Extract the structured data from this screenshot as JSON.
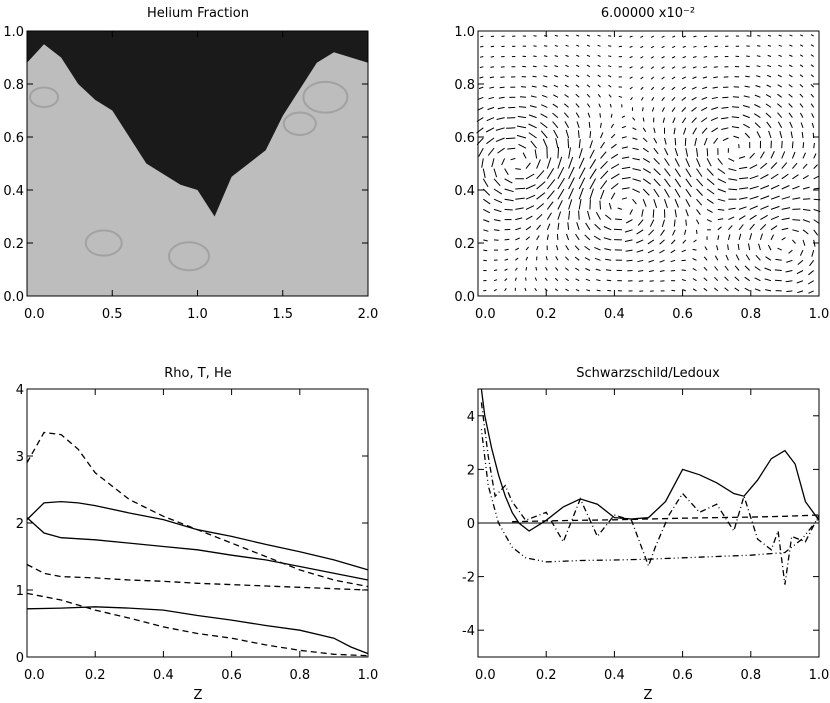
{
  "chart_data": [
    {
      "type": "heatmap",
      "title": "Helium Fraction",
      "xlabel": "",
      "ylabel": "",
      "xlim": [
        0,
        2
      ],
      "ylim": [
        0,
        1
      ],
      "xticks": [
        "0.0",
        "0.5",
        "1.0",
        "1.5",
        "2.0"
      ],
      "yticks": [
        "0.0",
        "0.2",
        "0.4",
        "0.6",
        "0.8",
        "1.0"
      ],
      "colormap": "grayscale",
      "colors": {
        "low": "#1a1a1a",
        "high": "#bdbdbd"
      },
      "dark_region_boundary": {
        "x": [
          0.0,
          0.1,
          0.2,
          0.3,
          0.4,
          0.5,
          0.6,
          0.7,
          0.8,
          0.9,
          1.0,
          1.1,
          1.2,
          1.3,
          1.4,
          1.5,
          1.6,
          1.7,
          1.8,
          1.9,
          2.0
        ],
        "y": [
          0.88,
          0.95,
          0.9,
          0.8,
          0.74,
          0.7,
          0.6,
          0.5,
          0.46,
          0.42,
          0.4,
          0.3,
          0.45,
          0.5,
          0.55,
          0.68,
          0.78,
          0.88,
          0.92,
          0.9,
          0.88
        ]
      }
    },
    {
      "type": "quiver",
      "title": "6.00000 x10⁻²",
      "xlabel": "",
      "ylabel": "",
      "xlim": [
        0,
        1
      ],
      "ylim": [
        0,
        1
      ],
      "xticks": [
        "0.0",
        "0.2",
        "0.4",
        "0.6",
        "0.8",
        "1.0"
      ],
      "yticks": [
        "0.0",
        "0.2",
        "0.4",
        "0.6",
        "0.8",
        "1.0"
      ],
      "vortices": [
        {
          "x": 0.12,
          "y": 0.5,
          "strength": 1.0
        },
        {
          "x": 0.42,
          "y": 0.35,
          "strength": -0.8
        },
        {
          "x": 0.75,
          "y": 0.55,
          "strength": 0.7
        },
        {
          "x": 0.9,
          "y": 0.2,
          "strength": -0.6
        }
      ]
    },
    {
      "type": "line",
      "title": "Rho, T, He",
      "xlabel": "Z",
      "ylabel": "",
      "xlim": [
        0,
        1
      ],
      "ylim": [
        0,
        4
      ],
      "xticks": [
        "0.0",
        "0.2",
        "0.4",
        "0.6",
        "0.8",
        "1.0"
      ],
      "yticks": [
        "0",
        "1",
        "2",
        "3",
        "4"
      ],
      "series": [
        {
          "style": "dashed",
          "x": [
            0.0,
            0.05,
            0.1,
            0.15,
            0.2,
            0.3,
            0.4,
            0.5,
            0.6,
            0.7,
            0.8,
            0.9,
            1.0
          ],
          "y": [
            2.9,
            3.35,
            3.32,
            3.1,
            2.75,
            2.35,
            2.1,
            1.9,
            1.7,
            1.5,
            1.3,
            1.15,
            1.05
          ]
        },
        {
          "style": "solid",
          "x": [
            0.0,
            0.05,
            0.1,
            0.15,
            0.2,
            0.3,
            0.4,
            0.5,
            0.6,
            0.7,
            0.8,
            0.9,
            1.0
          ],
          "y": [
            2.05,
            2.3,
            2.32,
            2.3,
            2.26,
            2.15,
            2.05,
            1.9,
            1.8,
            1.68,
            1.57,
            1.45,
            1.3
          ]
        },
        {
          "style": "solid",
          "x": [
            0.0,
            0.05,
            0.1,
            0.2,
            0.3,
            0.4,
            0.5,
            0.6,
            0.7,
            0.8,
            0.9,
            1.0
          ],
          "y": [
            2.08,
            1.85,
            1.78,
            1.75,
            1.7,
            1.65,
            1.6,
            1.52,
            1.45,
            1.35,
            1.25,
            1.15
          ]
        },
        {
          "style": "dashed",
          "x": [
            0.0,
            0.05,
            0.1,
            0.2,
            0.3,
            0.4,
            0.5,
            0.6,
            0.7,
            0.8,
            0.9,
            1.0
          ],
          "y": [
            1.38,
            1.25,
            1.2,
            1.18,
            1.15,
            1.13,
            1.1,
            1.08,
            1.06,
            1.04,
            1.02,
            1.0
          ]
        },
        {
          "style": "dashed",
          "x": [
            0.0,
            0.1,
            0.2,
            0.3,
            0.4,
            0.5,
            0.6,
            0.7,
            0.8,
            0.9,
            1.0
          ],
          "y": [
            0.95,
            0.85,
            0.7,
            0.58,
            0.45,
            0.35,
            0.28,
            0.18,
            0.1,
            0.04,
            0.02
          ]
        },
        {
          "style": "solid",
          "x": [
            0.0,
            0.1,
            0.2,
            0.3,
            0.4,
            0.5,
            0.6,
            0.7,
            0.8,
            0.9,
            0.95,
            1.0
          ],
          "y": [
            0.72,
            0.73,
            0.75,
            0.73,
            0.7,
            0.62,
            0.55,
            0.47,
            0.4,
            0.28,
            0.15,
            0.05
          ]
        }
      ]
    },
    {
      "type": "line",
      "title": "Schwarzschild/Ledoux",
      "xlabel": "Z",
      "ylabel": "",
      "xlim": [
        0,
        1
      ],
      "ylim": [
        -5,
        5
      ],
      "xticks": [
        "0.0",
        "0.2",
        "0.4",
        "0.6",
        "0.8",
        "1.0"
      ],
      "yticks": [
        "-4",
        "-2",
        "0",
        "2",
        "4"
      ],
      "hline": 0,
      "series": [
        {
          "style": "solid",
          "x": [
            0.01,
            0.02,
            0.04,
            0.06,
            0.08,
            0.1,
            0.12,
            0.15,
            0.2,
            0.25,
            0.3,
            0.35,
            0.4,
            0.45,
            0.5,
            0.55,
            0.6,
            0.65,
            0.7,
            0.75,
            0.78,
            0.82,
            0.86,
            0.9,
            0.93,
            0.96,
            1.0
          ],
          "y": [
            5.0,
            4.0,
            2.8,
            1.8,
            1.0,
            0.4,
            0.0,
            -0.3,
            0.1,
            0.6,
            0.9,
            0.7,
            0.2,
            0.15,
            0.2,
            0.8,
            2.0,
            1.8,
            1.5,
            1.1,
            1.0,
            1.6,
            2.4,
            2.7,
            2.2,
            0.8,
            0.1
          ]
        },
        {
          "style": "dashdot",
          "x": [
            0.01,
            0.03,
            0.05,
            0.08,
            0.1,
            0.14,
            0.2,
            0.25,
            0.3,
            0.35,
            0.4,
            0.45,
            0.5,
            0.52,
            0.56,
            0.6,
            0.65,
            0.7,
            0.75,
            0.78,
            0.82,
            0.86,
            0.88,
            0.9,
            0.92,
            0.96,
            1.0
          ],
          "y": [
            4.5,
            2.5,
            1.0,
            1.4,
            0.8,
            0.1,
            0.4,
            -0.7,
            0.9,
            -0.5,
            0.3,
            0.1,
            -1.6,
            -0.9,
            0.3,
            1.1,
            0.4,
            0.7,
            -0.3,
            1.0,
            -0.6,
            -1.0,
            -0.3,
            -2.3,
            -0.5,
            -0.7,
            0.3
          ]
        },
        {
          "style": "dashed",
          "x": [
            0.1,
            0.2,
            0.3,
            0.4,
            0.5,
            0.6,
            0.7,
            0.8,
            0.9,
            1.0
          ],
          "y": [
            0.05,
            0.08,
            0.1,
            0.12,
            0.15,
            0.18,
            0.2,
            0.22,
            0.25,
            0.3
          ]
        },
        {
          "style": "dotdotdash",
          "x": [
            0.01,
            0.03,
            0.06,
            0.1,
            0.14,
            0.2,
            0.3,
            0.4,
            0.5,
            0.6,
            0.7,
            0.8,
            0.9,
            0.95,
            1.0
          ],
          "y": [
            3.5,
            1.4,
            0.0,
            -0.9,
            -1.3,
            -1.45,
            -1.4,
            -1.38,
            -1.35,
            -1.3,
            -1.25,
            -1.2,
            -1.1,
            -0.6,
            0.2
          ]
        }
      ]
    }
  ]
}
